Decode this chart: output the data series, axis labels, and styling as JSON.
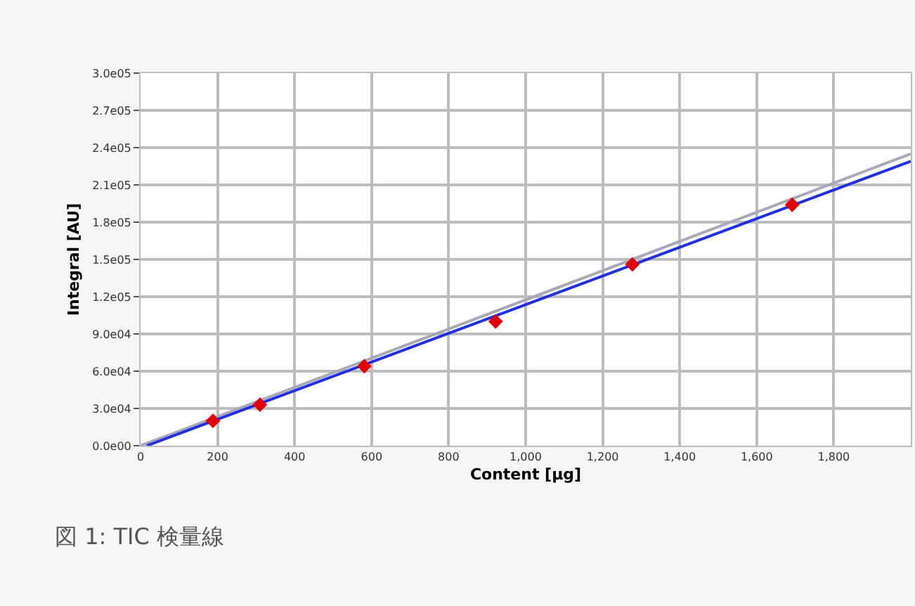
{
  "chart_data": {
    "type": "scatter",
    "xlabel": "Content [µg]",
    "ylabel": "Integral [AU]",
    "annotations": [
      "図 1: TIC 検量線"
    ],
    "xlim": [
      0,
      2000
    ],
    "xticks": [
      0,
      200,
      400,
      600,
      800,
      {
        "value": 1000,
        "label": "1,000"
      },
      {
        "value": 1200,
        "label": "1,200"
      },
      {
        "value": 1400,
        "label": "1,400"
      },
      {
        "value": 1600,
        "label": "1,600"
      },
      {
        "value": 1800,
        "label": "1,800"
      }
    ],
    "ylim": [
      0,
      300000
    ],
    "yticks": [
      {
        "value": 0,
        "label": "0.0e00"
      },
      {
        "value": 30000,
        "label": "3.0e04"
      },
      {
        "value": 60000,
        "label": "6.0e04"
      },
      {
        "value": 90000,
        "label": "9.0e04"
      },
      {
        "value": 120000,
        "label": "1.2e05"
      },
      {
        "value": 150000,
        "label": "1.5e05"
      },
      {
        "value": 180000,
        "label": "1.8e05"
      },
      {
        "value": 210000,
        "label": "2.1e05"
      },
      {
        "value": 240000,
        "label": "2.4e05"
      },
      {
        "value": 270000,
        "label": "2.7e05"
      },
      {
        "value": 300000,
        "label": "3.0e05"
      }
    ],
    "grid": true,
    "series": [
      {
        "type": "line",
        "color": "#a8a8b8",
        "x": [
          0,
          2000
        ],
        "values": [
          0,
          235000
        ],
        "marker": "none"
      },
      {
        "type": "line",
        "color": "#2030e0",
        "x": [
          16,
          2000
        ],
        "values": [
          0,
          229000
        ],
        "marker": "none"
      },
      {
        "color": "#e00000",
        "marker": "diamond",
        "x": [
          188,
          310,
          581,
          922,
          1277,
          1692
        ],
        "values": [
          20000,
          33000,
          64000,
          100000,
          146000,
          194000
        ]
      }
    ]
  }
}
